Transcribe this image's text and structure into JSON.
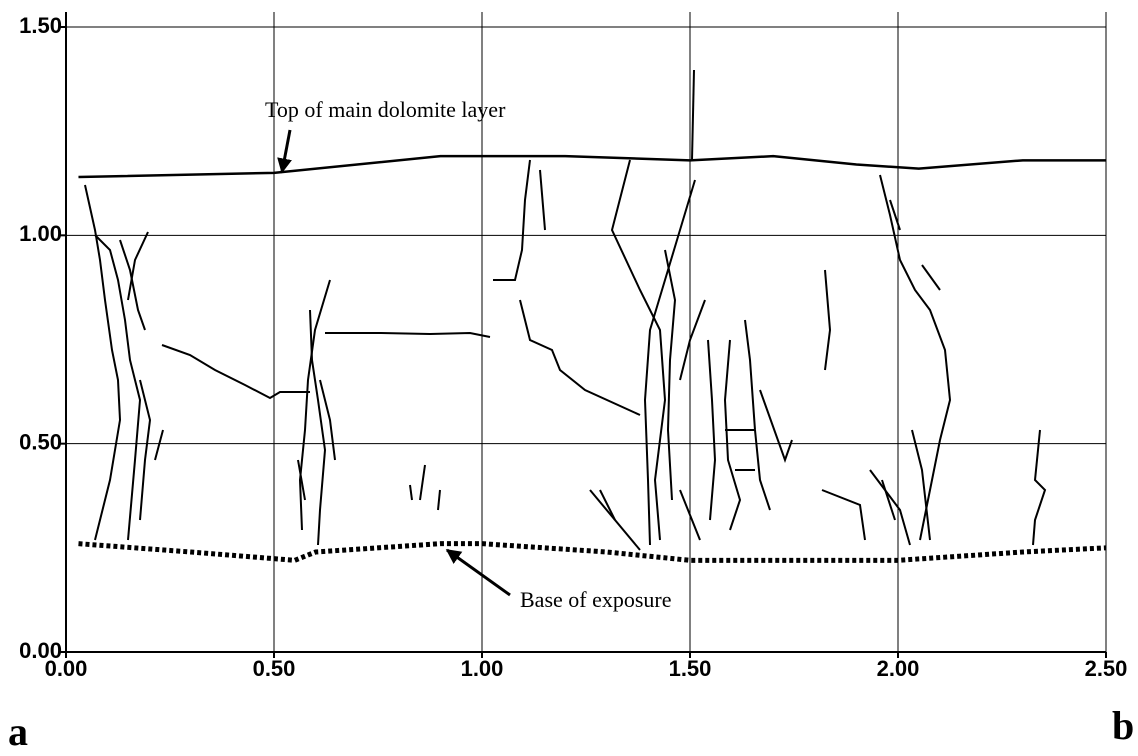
{
  "chart_data": {
    "type": "line",
    "annotations": [
      "Top of main dolomite layer",
      "Base of exposure"
    ],
    "panel_labels": [
      "a",
      "b"
    ],
    "series": [
      {
        "color": "#000000",
        "style": "solid",
        "x": [
          0.03,
          0.5,
          0.9,
          1.2,
          1.5,
          1.7,
          1.9,
          2.05,
          2.3,
          2.5
        ],
        "values": [
          1.14,
          1.15,
          1.19,
          1.19,
          1.18,
          1.19,
          1.17,
          1.16,
          1.18,
          1.18
        ]
      },
      {
        "color": "#000000",
        "style": "dotted",
        "x": [
          0.03,
          0.3,
          0.55,
          0.6,
          0.9,
          1.0,
          1.3,
          1.5,
          1.8,
          2.0,
          2.3,
          2.5
        ],
        "values": [
          0.26,
          0.24,
          0.22,
          0.24,
          0.26,
          0.26,
          0.24,
          0.22,
          0.22,
          0.22,
          0.24,
          0.25
        ]
      }
    ],
    "xlim": [
      0,
      2.5
    ],
    "xticks": [
      {
        "value": 0,
        "label": "0.00"
      },
      {
        "value": 0.5,
        "label": "0.50"
      },
      {
        "value": 1,
        "label": "1.00"
      },
      {
        "value": 1.5,
        "label": "1.50"
      },
      {
        "value": 2,
        "label": "2.00"
      },
      {
        "value": 2.5,
        "label": "2.50"
      }
    ],
    "ylim": [
      0,
      1.5
    ],
    "yticks": [
      {
        "value": 0,
        "label": "0.00"
      },
      {
        "value": 0.5,
        "label": "0.50"
      },
      {
        "value": 1,
        "label": "1.00"
      },
      {
        "value": 1.5,
        "label": "1.50"
      }
    ],
    "grid": true
  }
}
